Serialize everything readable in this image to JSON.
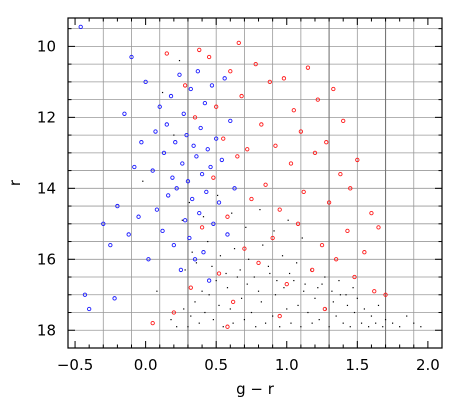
{
  "chart_data": {
    "type": "scatter",
    "title": "",
    "xlabel": "g − r",
    "ylabel": "r",
    "xlim": [
      -0.55,
      2.1
    ],
    "ylim": [
      18.5,
      9.2
    ],
    "y_inverted": true,
    "grid": true,
    "grid_x": [
      -0.3,
      -0.1,
      0.1,
      0.3,
      0.5,
      0.7,
      0.9,
      1.1,
      1.3,
      1.5,
      1.7,
      1.9
    ],
    "grid_y": [
      9.5,
      10,
      10.5,
      11,
      11.5,
      12,
      12.5,
      13,
      13.5,
      14,
      14.5,
      15,
      15.5,
      16,
      16.5,
      17,
      17.5,
      18
    ],
    "emphasized_grid_x": [
      0.3,
      1.3,
      1.7
    ],
    "x_ticks": [
      "−0.5",
      "0.0",
      "0.5",
      "1.0",
      "1.5",
      "2.0"
    ],
    "x_tick_values": [
      -0.5,
      0.0,
      0.5,
      1.0,
      1.5,
      2.0
    ],
    "y_ticks": [
      "10",
      "12",
      "14",
      "16",
      "18"
    ],
    "y_tick_values": [
      10,
      12,
      14,
      16,
      18
    ],
    "legend": "none",
    "colors": {
      "blue": "#1a1aff",
      "red": "#ff1a1a",
      "black": "#000000",
      "grid": "#999999"
    },
    "series": [
      {
        "color": "blue",
        "marker": "open-circle",
        "points": [
          [
            -0.46,
            9.45
          ],
          [
            -0.43,
            17.0
          ],
          [
            -0.4,
            17.4
          ],
          [
            -0.3,
            15.0
          ],
          [
            -0.25,
            15.6
          ],
          [
            -0.22,
            17.1
          ],
          [
            -0.2,
            14.5
          ],
          [
            -0.15,
            11.9
          ],
          [
            -0.12,
            15.3
          ],
          [
            -0.1,
            10.3
          ],
          [
            -0.08,
            13.4
          ],
          [
            -0.05,
            14.8
          ],
          [
            -0.03,
            12.7
          ],
          [
            0.0,
            11.0
          ],
          [
            0.02,
            16.0
          ],
          [
            0.05,
            13.5
          ],
          [
            0.07,
            12.4
          ],
          [
            0.08,
            14.6
          ],
          [
            0.1,
            11.7
          ],
          [
            0.12,
            15.2
          ],
          [
            0.13,
            13.0
          ],
          [
            0.15,
            12.2
          ],
          [
            0.16,
            14.2
          ],
          [
            0.18,
            11.4
          ],
          [
            0.19,
            13.7
          ],
          [
            0.2,
            15.6
          ],
          [
            0.21,
            12.7
          ],
          [
            0.22,
            14.0
          ],
          [
            0.24,
            10.8
          ],
          [
            0.25,
            16.3
          ],
          [
            0.26,
            13.3
          ],
          [
            0.27,
            11.9
          ],
          [
            0.28,
            14.9
          ],
          [
            0.29,
            12.5
          ],
          [
            0.3,
            13.8
          ],
          [
            0.31,
            15.4
          ],
          [
            0.32,
            11.2
          ],
          [
            0.33,
            14.3
          ],
          [
            0.34,
            12.8
          ],
          [
            0.35,
            16.0
          ],
          [
            0.36,
            13.1
          ],
          [
            0.37,
            10.7
          ],
          [
            0.38,
            14.7
          ],
          [
            0.39,
            12.3
          ],
          [
            0.4,
            13.6
          ],
          [
            0.41,
            15.8
          ],
          [
            0.42,
            11.6
          ],
          [
            0.43,
            14.1
          ],
          [
            0.44,
            12.9
          ],
          [
            0.45,
            16.6
          ],
          [
            0.46,
            13.4
          ],
          [
            0.47,
            11.1
          ],
          [
            0.48,
            15.0
          ],
          [
            0.5,
            12.6
          ],
          [
            0.52,
            14.4
          ],
          [
            0.54,
            13.2
          ],
          [
            0.56,
            10.9
          ],
          [
            0.58,
            15.3
          ],
          [
            0.6,
            12.1
          ],
          [
            0.63,
            14.0
          ]
        ]
      },
      {
        "color": "red",
        "marker": "open-circle",
        "points": [
          [
            0.15,
            10.2
          ],
          [
            0.2,
            17.5
          ],
          [
            0.28,
            11.1
          ],
          [
            0.32,
            16.8
          ],
          [
            0.35,
            12.0
          ],
          [
            0.4,
            15.1
          ],
          [
            0.45,
            10.3
          ],
          [
            0.48,
            13.7
          ],
          [
            0.5,
            11.7
          ],
          [
            0.52,
            16.4
          ],
          [
            0.55,
            12.6
          ],
          [
            0.58,
            14.8
          ],
          [
            0.6,
            10.7
          ],
          [
            0.62,
            17.2
          ],
          [
            0.65,
            13.1
          ],
          [
            0.68,
            11.4
          ],
          [
            0.7,
            15.7
          ],
          [
            0.72,
            12.9
          ],
          [
            0.75,
            14.3
          ],
          [
            0.78,
            10.5
          ],
          [
            0.8,
            16.1
          ],
          [
            0.82,
            12.2
          ],
          [
            0.85,
            13.9
          ],
          [
            0.88,
            11.0
          ],
          [
            0.9,
            15.4
          ],
          [
            0.92,
            12.8
          ],
          [
            0.95,
            14.6
          ],
          [
            0.98,
            10.9
          ],
          [
            1.0,
            16.7
          ],
          [
            1.03,
            13.3
          ],
          [
            1.05,
            11.8
          ],
          [
            1.08,
            15.0
          ],
          [
            1.1,
            12.4
          ],
          [
            1.12,
            14.1
          ],
          [
            1.15,
            10.6
          ],
          [
            1.18,
            16.3
          ],
          [
            1.2,
            13.0
          ],
          [
            1.22,
            11.5
          ],
          [
            1.25,
            15.6
          ],
          [
            1.28,
            12.7
          ],
          [
            1.3,
            14.4
          ],
          [
            1.33,
            11.2
          ],
          [
            1.35,
            16.0
          ],
          [
            1.38,
            13.6
          ],
          [
            1.4,
            12.1
          ],
          [
            1.43,
            15.2
          ],
          [
            1.45,
            14.0
          ],
          [
            1.48,
            16.5
          ],
          [
            1.5,
            13.2
          ],
          [
            1.55,
            15.8
          ],
          [
            1.6,
            14.7
          ],
          [
            1.62,
            16.9
          ],
          [
            1.65,
            15.1
          ],
          [
            1.7,
            17.0
          ],
          [
            0.05,
            17.8
          ],
          [
            0.66,
            9.9
          ],
          [
            0.38,
            10.1
          ],
          [
            0.95,
            17.6
          ],
          [
            1.27,
            17.4
          ],
          [
            0.58,
            17.9
          ]
        ]
      },
      {
        "color": "black",
        "marker": "dot",
        "points": [
          [
            0.3,
            17.9
          ],
          [
            0.32,
            17.6
          ],
          [
            0.35,
            17.2
          ],
          [
            0.38,
            17.8
          ],
          [
            0.4,
            16.9
          ],
          [
            0.42,
            17.5
          ],
          [
            0.45,
            17.0
          ],
          [
            0.48,
            17.7
          ],
          [
            0.5,
            16.6
          ],
          [
            0.52,
            17.3
          ],
          [
            0.55,
            17.9
          ],
          [
            0.58,
            16.8
          ],
          [
            0.6,
            17.4
          ],
          [
            0.62,
            17.8
          ],
          [
            0.65,
            16.5
          ],
          [
            0.68,
            17.1
          ],
          [
            0.7,
            17.7
          ],
          [
            0.72,
            16.7
          ],
          [
            0.75,
            17.5
          ],
          [
            0.78,
            17.9
          ],
          [
            0.8,
            16.9
          ],
          [
            0.82,
            17.2
          ],
          [
            0.85,
            17.8
          ],
          [
            0.88,
            16.4
          ],
          [
            0.9,
            17.6
          ],
          [
            0.92,
            17.0
          ],
          [
            0.95,
            17.9
          ],
          [
            0.98,
            16.8
          ],
          [
            1.0,
            17.4
          ],
          [
            1.03,
            17.8
          ],
          [
            1.05,
            16.6
          ],
          [
            1.08,
            17.3
          ],
          [
            1.1,
            17.9
          ],
          [
            1.12,
            16.9
          ],
          [
            1.15,
            17.5
          ],
          [
            1.18,
            17.8
          ],
          [
            1.2,
            17.1
          ],
          [
            1.23,
            17.7
          ],
          [
            1.25,
            16.7
          ],
          [
            1.28,
            17.4
          ],
          [
            1.3,
            17.9
          ],
          [
            1.33,
            17.2
          ],
          [
            1.35,
            17.6
          ],
          [
            1.38,
            17.0
          ],
          [
            1.4,
            17.8
          ],
          [
            1.43,
            17.3
          ],
          [
            1.45,
            17.9
          ],
          [
            1.48,
            17.5
          ],
          [
            1.5,
            17.1
          ],
          [
            1.53,
            17.8
          ],
          [
            1.55,
            17.4
          ],
          [
            1.58,
            17.9
          ],
          [
            1.6,
            17.6
          ],
          [
            1.63,
            17.8
          ],
          [
            1.65,
            17.3
          ],
          [
            1.68,
            17.9
          ],
          [
            1.7,
            17.7
          ],
          [
            1.75,
            17.8
          ],
          [
            1.8,
            17.9
          ],
          [
            1.85,
            17.6
          ],
          [
            0.28,
            16.3
          ],
          [
            0.33,
            15.8
          ],
          [
            0.36,
            16.1
          ],
          [
            0.44,
            15.5
          ],
          [
            0.47,
            16.2
          ],
          [
            0.53,
            15.9
          ],
          [
            0.57,
            16.4
          ],
          [
            0.63,
            15.7
          ],
          [
            0.67,
            16.3
          ],
          [
            0.73,
            16.0
          ],
          [
            0.77,
            16.5
          ],
          [
            0.83,
            15.6
          ],
          [
            0.87,
            16.2
          ],
          [
            0.93,
            16.6
          ],
          [
            0.97,
            15.9
          ],
          [
            1.02,
            16.4
          ],
          [
            1.07,
            16.1
          ],
          [
            1.13,
            16.7
          ],
          [
            1.17,
            16.3
          ],
          [
            1.22,
            16.8
          ],
          [
            1.27,
            16.5
          ],
          [
            1.32,
            16.9
          ],
          [
            1.37,
            16.6
          ],
          [
            1.42,
            17.0
          ],
          [
            1.47,
            16.8
          ],
          [
            0.26,
            14.9
          ],
          [
            0.31,
            14.4
          ],
          [
            0.41,
            14.8
          ],
          [
            0.51,
            14.2
          ],
          [
            0.61,
            14.7
          ],
          [
            0.71,
            15.1
          ],
          [
            0.81,
            14.6
          ],
          [
            0.91,
            15.2
          ],
          [
            1.01,
            14.9
          ],
          [
            1.11,
            15.4
          ],
          [
            0.2,
            12.5
          ],
          [
            0.12,
            11.3
          ],
          [
            -0.02,
            13.8
          ],
          [
            0.08,
            16.9
          ],
          [
            0.24,
            10.4
          ],
          [
            1.9,
            17.8
          ],
          [
            1.95,
            17.9
          ],
          [
            0.18,
            17.7
          ],
          [
            0.22,
            17.9
          ],
          [
            0.27,
            17.4
          ]
        ]
      }
    ]
  }
}
